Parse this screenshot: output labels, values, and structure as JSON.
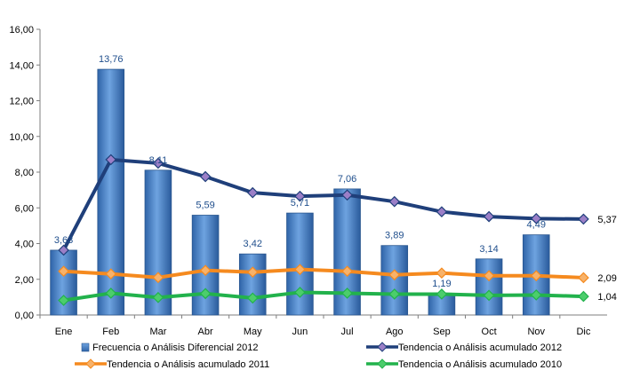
{
  "chart_data": {
    "type": "bar",
    "title": "",
    "xlabel": "",
    "ylabel": "",
    "ylim": [
      0,
      16
    ],
    "yticks": [
      "0,00",
      "2,00",
      "4,00",
      "6,00",
      "8,00",
      "10,00",
      "12,00",
      "14,00",
      "16,00"
    ],
    "categories": [
      "Ene",
      "Feb",
      "Mar",
      "Abr",
      "May",
      "Jun",
      "Jul",
      "Ago",
      "Sep",
      "Oct",
      "Nov",
      "Dic"
    ],
    "legend_position": "bottom",
    "series": [
      {
        "name": "Frecuencia o Análisis Diferencial 2012",
        "type": "bar",
        "color": "#4a86c8",
        "values": [
          3.63,
          13.76,
          8.11,
          5.59,
          3.42,
          5.71,
          7.06,
          3.89,
          1.19,
          3.14,
          4.49,
          null
        ],
        "labels": [
          "3,63",
          "13,76",
          "8,11",
          "5,59",
          "3,42",
          "5,71",
          "7,06",
          "3,89",
          "1,19",
          "3,14",
          "4,49",
          ""
        ]
      },
      {
        "name": "Tendencia o Análisis acumulado 2012",
        "type": "line",
        "color": "#1f3f7a",
        "marker_color": "#9b7fc7",
        "values": [
          3.63,
          8.7,
          8.5,
          7.75,
          6.85,
          6.65,
          6.72,
          6.35,
          5.78,
          5.51,
          5.4,
          5.37
        ],
        "end_label": "5,37"
      },
      {
        "name": "Tendencia o Análisis acumulado 2011",
        "type": "line",
        "color": "#f58a1f",
        "marker_color": "#f7b26a",
        "values": [
          2.45,
          2.3,
          2.1,
          2.5,
          2.4,
          2.55,
          2.45,
          2.25,
          2.35,
          2.2,
          2.2,
          2.09
        ],
        "end_label": "2,09"
      },
      {
        "name": "Tendencia o Análisis acumulado 2010",
        "type": "line",
        "color": "#22b24c",
        "marker_color": "#4ccd6c",
        "values": [
          0.82,
          1.22,
          0.98,
          1.2,
          0.95,
          1.27,
          1.22,
          1.17,
          1.17,
          1.1,
          1.12,
          1.04
        ],
        "end_label": "1,04"
      }
    ]
  }
}
